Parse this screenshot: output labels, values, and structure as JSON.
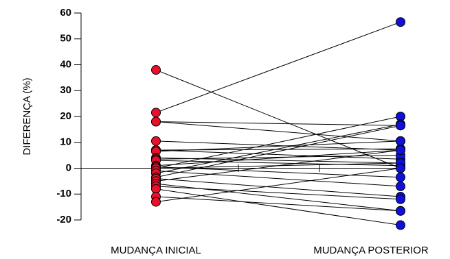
{
  "chart_data": {
    "type": "line",
    "ylabel": "DIFERENÇA (%)",
    "xlabel": "",
    "categories": [
      "MUDANÇA INICIAL",
      "MUDANÇA POSTERIOR"
    ],
    "ylim": [
      -20,
      60
    ],
    "yticks": [
      -20,
      -10,
      0,
      10,
      20,
      30,
      40,
      50,
      60
    ],
    "grid": false,
    "legend": "none",
    "colors": {
      "inicial": "#e8102a",
      "posterior": "#1010d8",
      "line": "#000000"
    },
    "pairs": [
      [
        38,
        0
      ],
      [
        21.5,
        56.5
      ],
      [
        18,
        16.5
      ],
      [
        18,
        10.5
      ],
      [
        10.5,
        7
      ],
      [
        7,
        7.5
      ],
      [
        7,
        3.5
      ],
      [
        6.5,
        10.5
      ],
      [
        4,
        2
      ],
      [
        3.5,
        5
      ],
      [
        3,
        1
      ],
      [
        1,
        7
      ],
      [
        0.5,
        -3.5
      ],
      [
        0,
        2
      ],
      [
        0,
        20
      ],
      [
        -1,
        -7
      ],
      [
        -2,
        17
      ],
      [
        -3.5,
        16.5
      ],
      [
        -4,
        -11
      ],
      [
        -5,
        7
      ],
      [
        -6,
        -16.5
      ],
      [
        -7,
        -12
      ],
      [
        -8,
        -22
      ],
      [
        -11,
        -16.5
      ],
      [
        -13,
        0
      ]
    ]
  }
}
